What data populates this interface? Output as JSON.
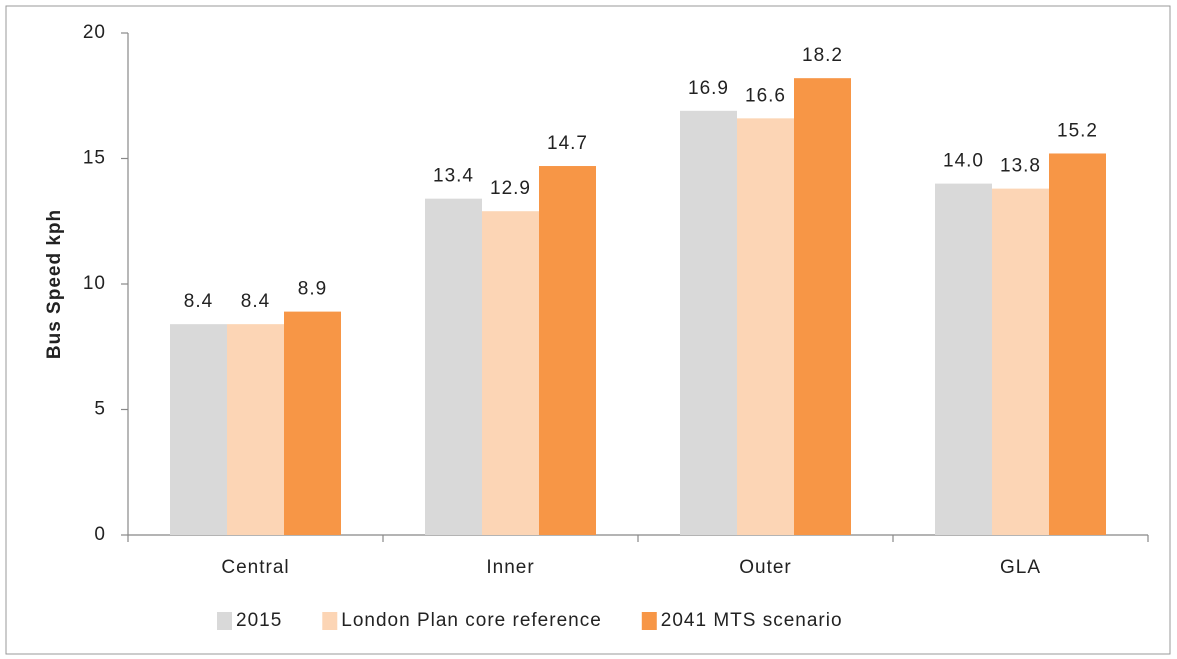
{
  "chart_data": {
    "type": "bar",
    "y_label": "Bus Speed kph",
    "categories": [
      "Central",
      "Inner",
      "Outer",
      "GLA"
    ],
    "series": [
      {
        "name": "2015",
        "color": "#d9d9d9",
        "values": [
          8.4,
          13.4,
          16.9,
          14.0
        ],
        "value_labels": [
          "8.4",
          "13.4",
          "16.9",
          "14.0"
        ]
      },
      {
        "name": "London Plan core reference",
        "color": "#fcd5b5",
        "values": [
          8.4,
          12.9,
          16.6,
          13.8
        ],
        "value_labels": [
          "8.4",
          "12.9",
          "16.6",
          "13.8"
        ]
      },
      {
        "name": "2041 MTS scenario",
        "color": "#f79646",
        "values": [
          8.9,
          14.7,
          18.2,
          15.2
        ],
        "value_labels": [
          "8.9",
          "14.7",
          "18.2",
          "15.2"
        ]
      }
    ],
    "ylim": [
      0,
      20
    ],
    "yticks": [
      0,
      5,
      10,
      15,
      20
    ],
    "legend": "bottom"
  }
}
